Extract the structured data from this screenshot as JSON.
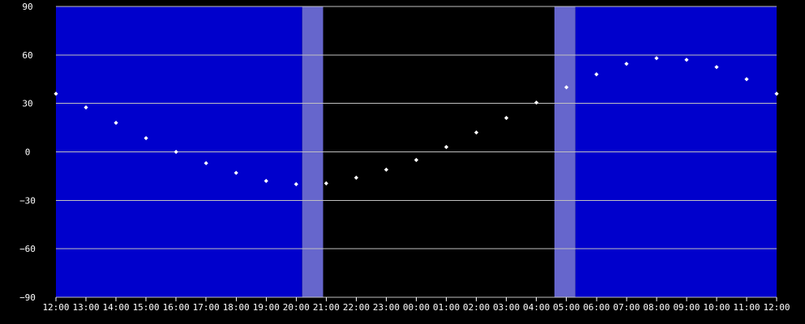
{
  "chart_data": {
    "type": "scatter",
    "title": "",
    "xlabel": "",
    "ylabel": "",
    "ylim": [
      -90,
      90
    ],
    "y_ticks": [
      90,
      60,
      30,
      0,
      -30,
      -60,
      -90
    ],
    "y_tick_labels": [
      "90",
      "60",
      "30",
      "0",
      "−30",
      "−60",
      "−90"
    ],
    "x_tick_labels": [
      "12:00",
      "13:00",
      "14:00",
      "15:00",
      "16:00",
      "17:00",
      "18:00",
      "19:00",
      "20:00",
      "21:00",
      "22:00",
      "23:00",
      "00:00",
      "01:00",
      "02:00",
      "03:00",
      "04:00",
      "05:00",
      "06:00",
      "07:00",
      "08:00",
      "09:00",
      "10:00",
      "11:00",
      "12:00"
    ],
    "x_hours": [
      0,
      1,
      2,
      3,
      4,
      5,
      6,
      7,
      8,
      9,
      10,
      11,
      12,
      13,
      14,
      15,
      16,
      17,
      18,
      19,
      20,
      21,
      22,
      23,
      24
    ],
    "y_values": [
      36,
      27.5,
      18,
      8.5,
      0,
      -7,
      -13,
      -18,
      -20,
      -19.5,
      -16,
      -11,
      -5,
      3,
      12,
      21,
      30.5,
      40,
      48,
      54.5,
      58,
      57,
      52.5,
      45,
      36
    ],
    "grid": true,
    "bands": [
      {
        "type": "day",
        "x_start": 0,
        "x_end": 8.2
      },
      {
        "type": "twilight",
        "x_start": 8.2,
        "x_end": 8.9
      },
      {
        "type": "night",
        "x_start": 8.9,
        "x_end": 16.6
      },
      {
        "type": "twilight",
        "x_start": 16.6,
        "x_end": 17.3
      },
      {
        "type": "day",
        "x_start": 17.3,
        "x_end": 24
      }
    ],
    "colors": {
      "day": "#0000cc",
      "twilight": "#6666cc",
      "night": "#000000",
      "background": "#000000",
      "grid": "#c0c0c0",
      "point": "#ffffff",
      "text": "#ffffff"
    }
  }
}
